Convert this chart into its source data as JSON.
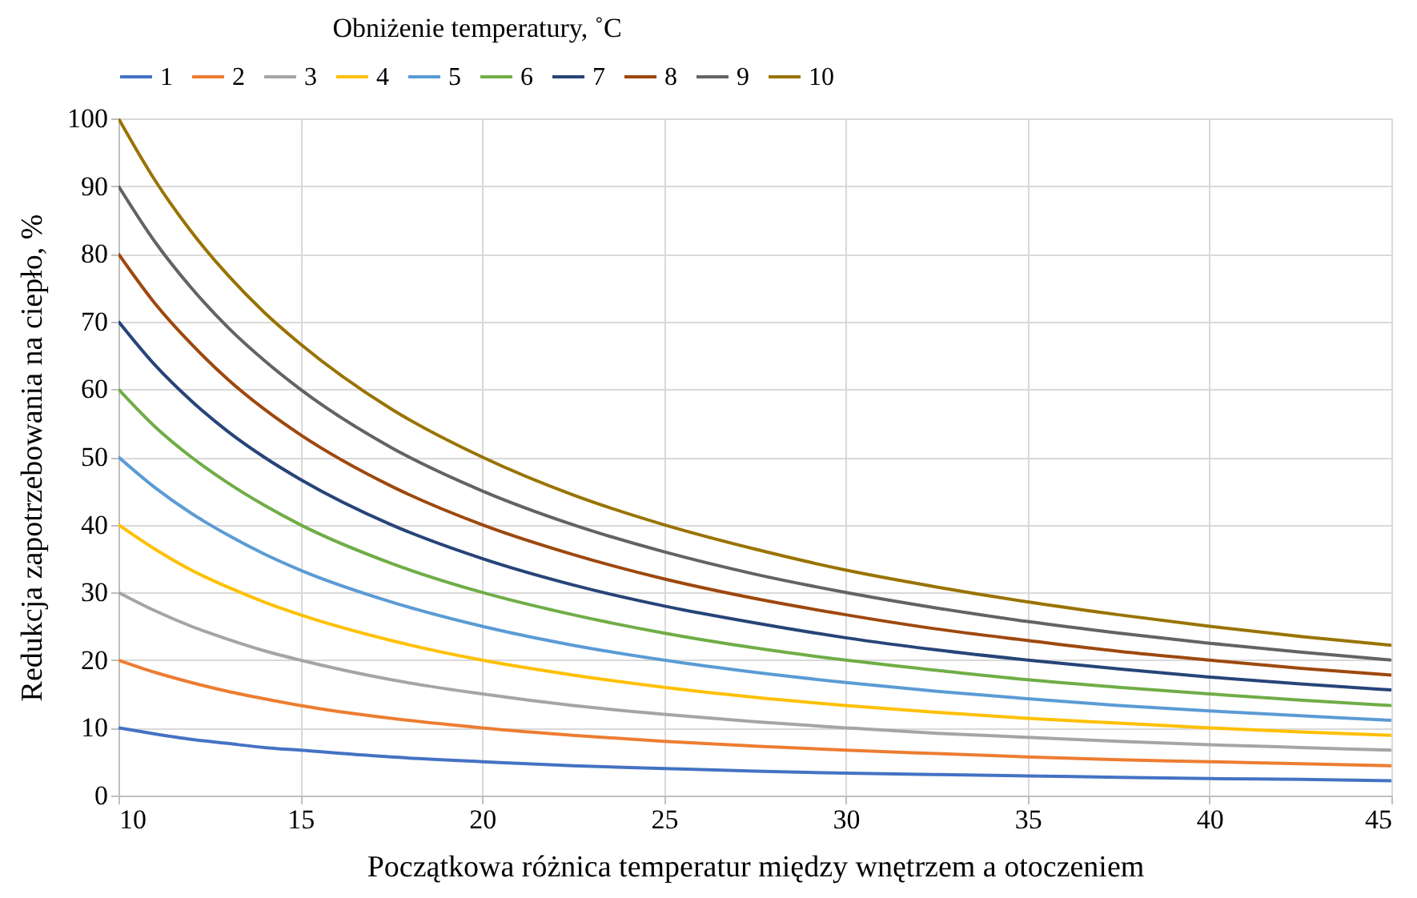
{
  "chart_data": {
    "type": "line",
    "legend_title": "Obniżenie temperatury, ˚C",
    "xlabel": "Początkowa różnica temperatur między wnętrzem a otoczeniem",
    "ylabel": "Redukcja zapotrzebowania na ciepło, %",
    "x": [
      10,
      11,
      12,
      13,
      14,
      15,
      17.5,
      20,
      22.5,
      25,
      27.5,
      30,
      32.5,
      35,
      37.5,
      40,
      42.5,
      45
    ],
    "xlim": [
      10,
      45
    ],
    "xticks": [
      10,
      15,
      20,
      25,
      30,
      35,
      40,
      45
    ],
    "ylim": [
      0,
      100
    ],
    "yticks": [
      0,
      10,
      20,
      30,
      40,
      50,
      60,
      70,
      80,
      90,
      100
    ],
    "grid": true,
    "legend": "top",
    "marker": "none",
    "line_style": "solid",
    "series": [
      {
        "name": "1",
        "color": "#4472c4",
        "values": [
          10,
          9.1,
          8.3,
          7.7,
          7.1,
          6.7,
          5.7,
          5,
          4.4,
          4,
          3.6,
          3.3,
          3.1,
          2.9,
          2.7,
          2.5,
          2.4,
          2.2
        ]
      },
      {
        "name": "2",
        "color": "#ed7d31",
        "values": [
          20,
          18.2,
          16.7,
          15.4,
          14.3,
          13.3,
          11.4,
          10,
          8.9,
          8,
          7.3,
          6.7,
          6.2,
          5.7,
          5.3,
          5,
          4.7,
          4.4
        ]
      },
      {
        "name": "3",
        "color": "#a5a5a5",
        "values": [
          30,
          27.3,
          25,
          23.1,
          21.4,
          20,
          17.1,
          15,
          13.3,
          12,
          10.9,
          10,
          9.2,
          8.6,
          8,
          7.5,
          7.1,
          6.7
        ]
      },
      {
        "name": "4",
        "color": "#ffc000",
        "values": [
          40,
          36.4,
          33.3,
          30.8,
          28.6,
          26.7,
          22.9,
          20,
          17.8,
          16,
          14.5,
          13.3,
          12.3,
          11.4,
          10.7,
          10,
          9.4,
          8.9
        ]
      },
      {
        "name": "5",
        "color": "#5b9bd5",
        "values": [
          50,
          45.5,
          41.7,
          38.5,
          35.7,
          33.3,
          28.6,
          25,
          22.2,
          20,
          18.2,
          16.7,
          15.4,
          14.3,
          13.3,
          12.5,
          11.8,
          11.1
        ]
      },
      {
        "name": "6",
        "color": "#70ad47",
        "values": [
          60,
          54.5,
          50,
          46.2,
          42.9,
          40,
          34.3,
          30,
          26.7,
          24,
          21.8,
          20,
          18.5,
          17.1,
          16,
          15,
          14.1,
          13.3
        ]
      },
      {
        "name": "7",
        "color": "#264478",
        "values": [
          70,
          63.6,
          58.3,
          53.8,
          50,
          46.7,
          40,
          35,
          31.1,
          28,
          25.5,
          23.3,
          21.5,
          20,
          18.7,
          17.5,
          16.5,
          15.6
        ]
      },
      {
        "name": "8",
        "color": "#9e480e",
        "values": [
          80,
          72.7,
          66.7,
          61.5,
          57.1,
          53.3,
          45.7,
          40,
          35.6,
          32,
          29.1,
          26.7,
          24.6,
          22.9,
          21.3,
          20,
          18.8,
          17.8
        ]
      },
      {
        "name": "9",
        "color": "#636363",
        "values": [
          90,
          81.8,
          75,
          69.2,
          64.3,
          60,
          51.4,
          45,
          40,
          36,
          32.7,
          30,
          27.7,
          25.7,
          24,
          22.5,
          21.2,
          20
        ]
      },
      {
        "name": "10",
        "color": "#997300",
        "values": [
          100,
          90.9,
          83.3,
          76.9,
          71.4,
          66.7,
          57.1,
          50,
          44.4,
          40,
          36.4,
          33.3,
          30.8,
          28.6,
          26.7,
          25,
          23.5,
          22.2
        ]
      }
    ]
  }
}
